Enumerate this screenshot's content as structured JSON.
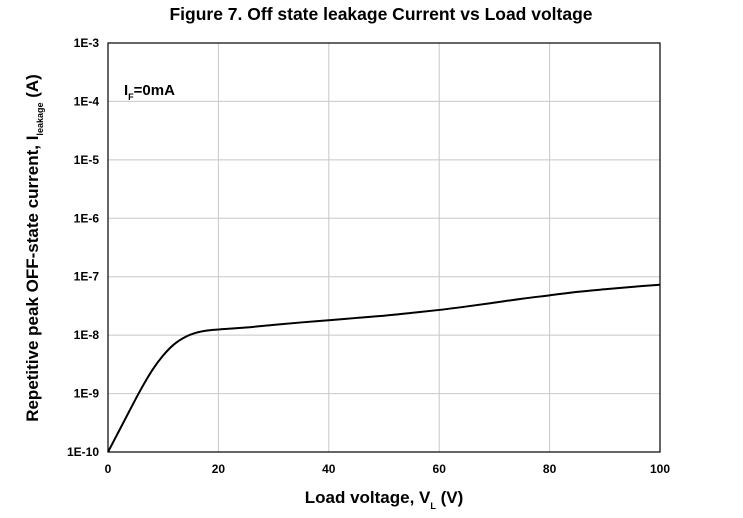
{
  "chart_data": {
    "type": "line",
    "title": "Figure 7. Off state leakage  Current vs Load voltage",
    "xlabel": {
      "main": "Load voltage, V",
      "subscript": "L",
      "suffix": " (V)"
    },
    "ylabel": {
      "main": "Repetitive peak OFF-state current, I",
      "subscript": "leakage",
      "suffix": " (A)"
    },
    "xlim": [
      0,
      100
    ],
    "ylim": [
      1e-10,
      0.001
    ],
    "yscale": "log",
    "grid": true,
    "x_ticks": [
      {
        "value": 0,
        "label": "0"
      },
      {
        "value": 20,
        "label": "20"
      },
      {
        "value": 40,
        "label": "40"
      },
      {
        "value": 60,
        "label": "60"
      },
      {
        "value": 80,
        "label": "80"
      },
      {
        "value": 100,
        "label": "100"
      }
    ],
    "y_ticks": [
      {
        "value": 1e-10,
        "label": "1E-10"
      },
      {
        "value": 1e-09,
        "label": "1E-9"
      },
      {
        "value": 1e-08,
        "label": "1E-8"
      },
      {
        "value": 1e-07,
        "label": "1E-7"
      },
      {
        "value": 1e-06,
        "label": "1E-6"
      },
      {
        "value": 1e-05,
        "label": "1E-5"
      },
      {
        "value": 0.0001,
        "label": "1E-4"
      },
      {
        "value": 0.001,
        "label": "1E-3"
      }
    ],
    "annotation": {
      "main": "I",
      "subscript": "F",
      "suffix": "=0mA"
    },
    "series": [
      {
        "color": "#000000",
        "x": [
          0,
          2,
          4,
          6,
          8,
          10,
          12,
          14,
          16,
          18,
          20,
          25,
          30,
          35,
          40,
          45,
          50,
          55,
          60,
          65,
          70,
          75,
          80,
          85,
          90,
          95,
          100
        ],
        "y": [
          1e-10,
          2.3e-10,
          5.3e-10,
          1.2e-09,
          2.5e-09,
          4.5e-09,
          7e-09,
          9.3e-09,
          1.1e-08,
          1.2e-08,
          1.25e-08,
          1.35e-08,
          1.5e-08,
          1.65e-08,
          1.8e-08,
          1.97e-08,
          2.15e-08,
          2.4e-08,
          2.7e-08,
          3.1e-08,
          3.6e-08,
          4.2e-08,
          4.8e-08,
          5.5e-08,
          6.1e-08,
          6.7e-08,
          7.3e-08
        ]
      }
    ]
  }
}
